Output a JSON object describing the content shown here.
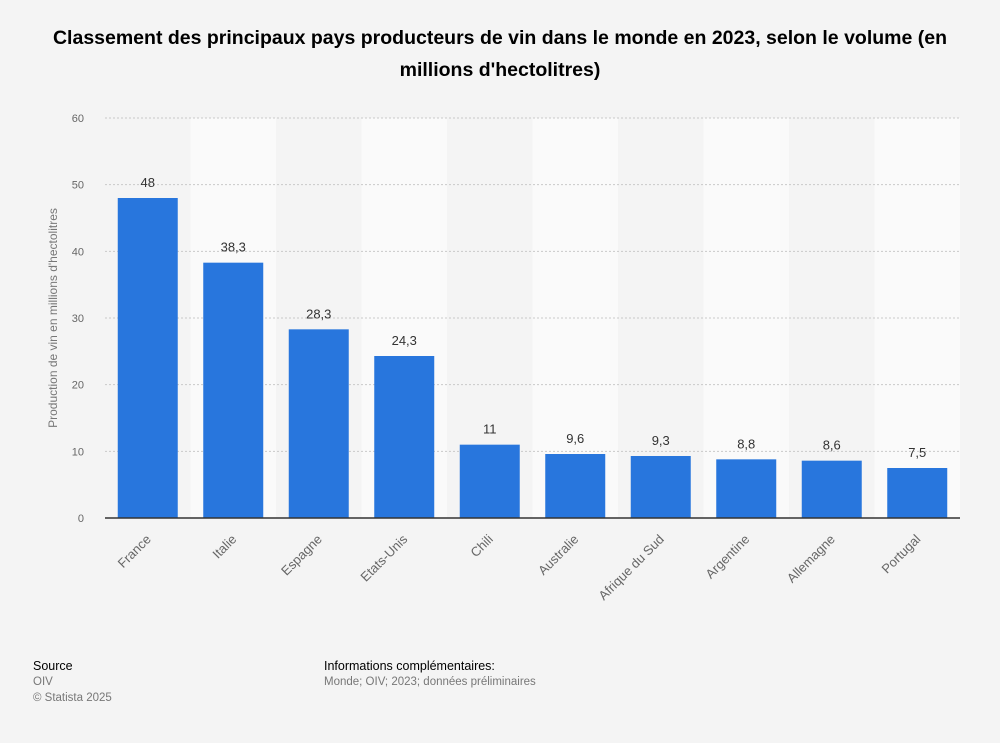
{
  "header": {
    "title": "Classement des principaux pays producteurs de vin dans le monde en 2023, selon le volume (en millions d'hectolitres)"
  },
  "chart_data": {
    "type": "bar",
    "title": "Classement des principaux pays producteurs de vin dans le monde en 2023, selon le volume (en millions d'hectolitres)",
    "categories": [
      "France",
      "Italie",
      "Espagne",
      "Etats-Unis",
      "Chili",
      "Australie",
      "Afrique du Sud",
      "Argentine",
      "Allemagne",
      "Portugal"
    ],
    "values": [
      48,
      38.3,
      28.3,
      24.3,
      11,
      9.6,
      9.3,
      8.8,
      8.6,
      7.5
    ],
    "value_labels": [
      "48",
      "38,3",
      "28,3",
      "24,3",
      "11",
      "9,6",
      "9,3",
      "8,8",
      "8,6",
      "7,5"
    ],
    "xlabel": "",
    "ylabel": "Production de vin en millions d'hectolitres",
    "ylim": [
      0,
      60
    ],
    "yticks": [
      0,
      10,
      20,
      30,
      40,
      50,
      60
    ],
    "grid": true,
    "bar_color": "#2876dd"
  },
  "footer": {
    "source_heading": "Source",
    "source_name": "OIV",
    "copyright": "© Statista 2025",
    "info_heading": "Informations complémentaires:",
    "info_text": "Monde; OIV; 2023; données préliminaires"
  }
}
